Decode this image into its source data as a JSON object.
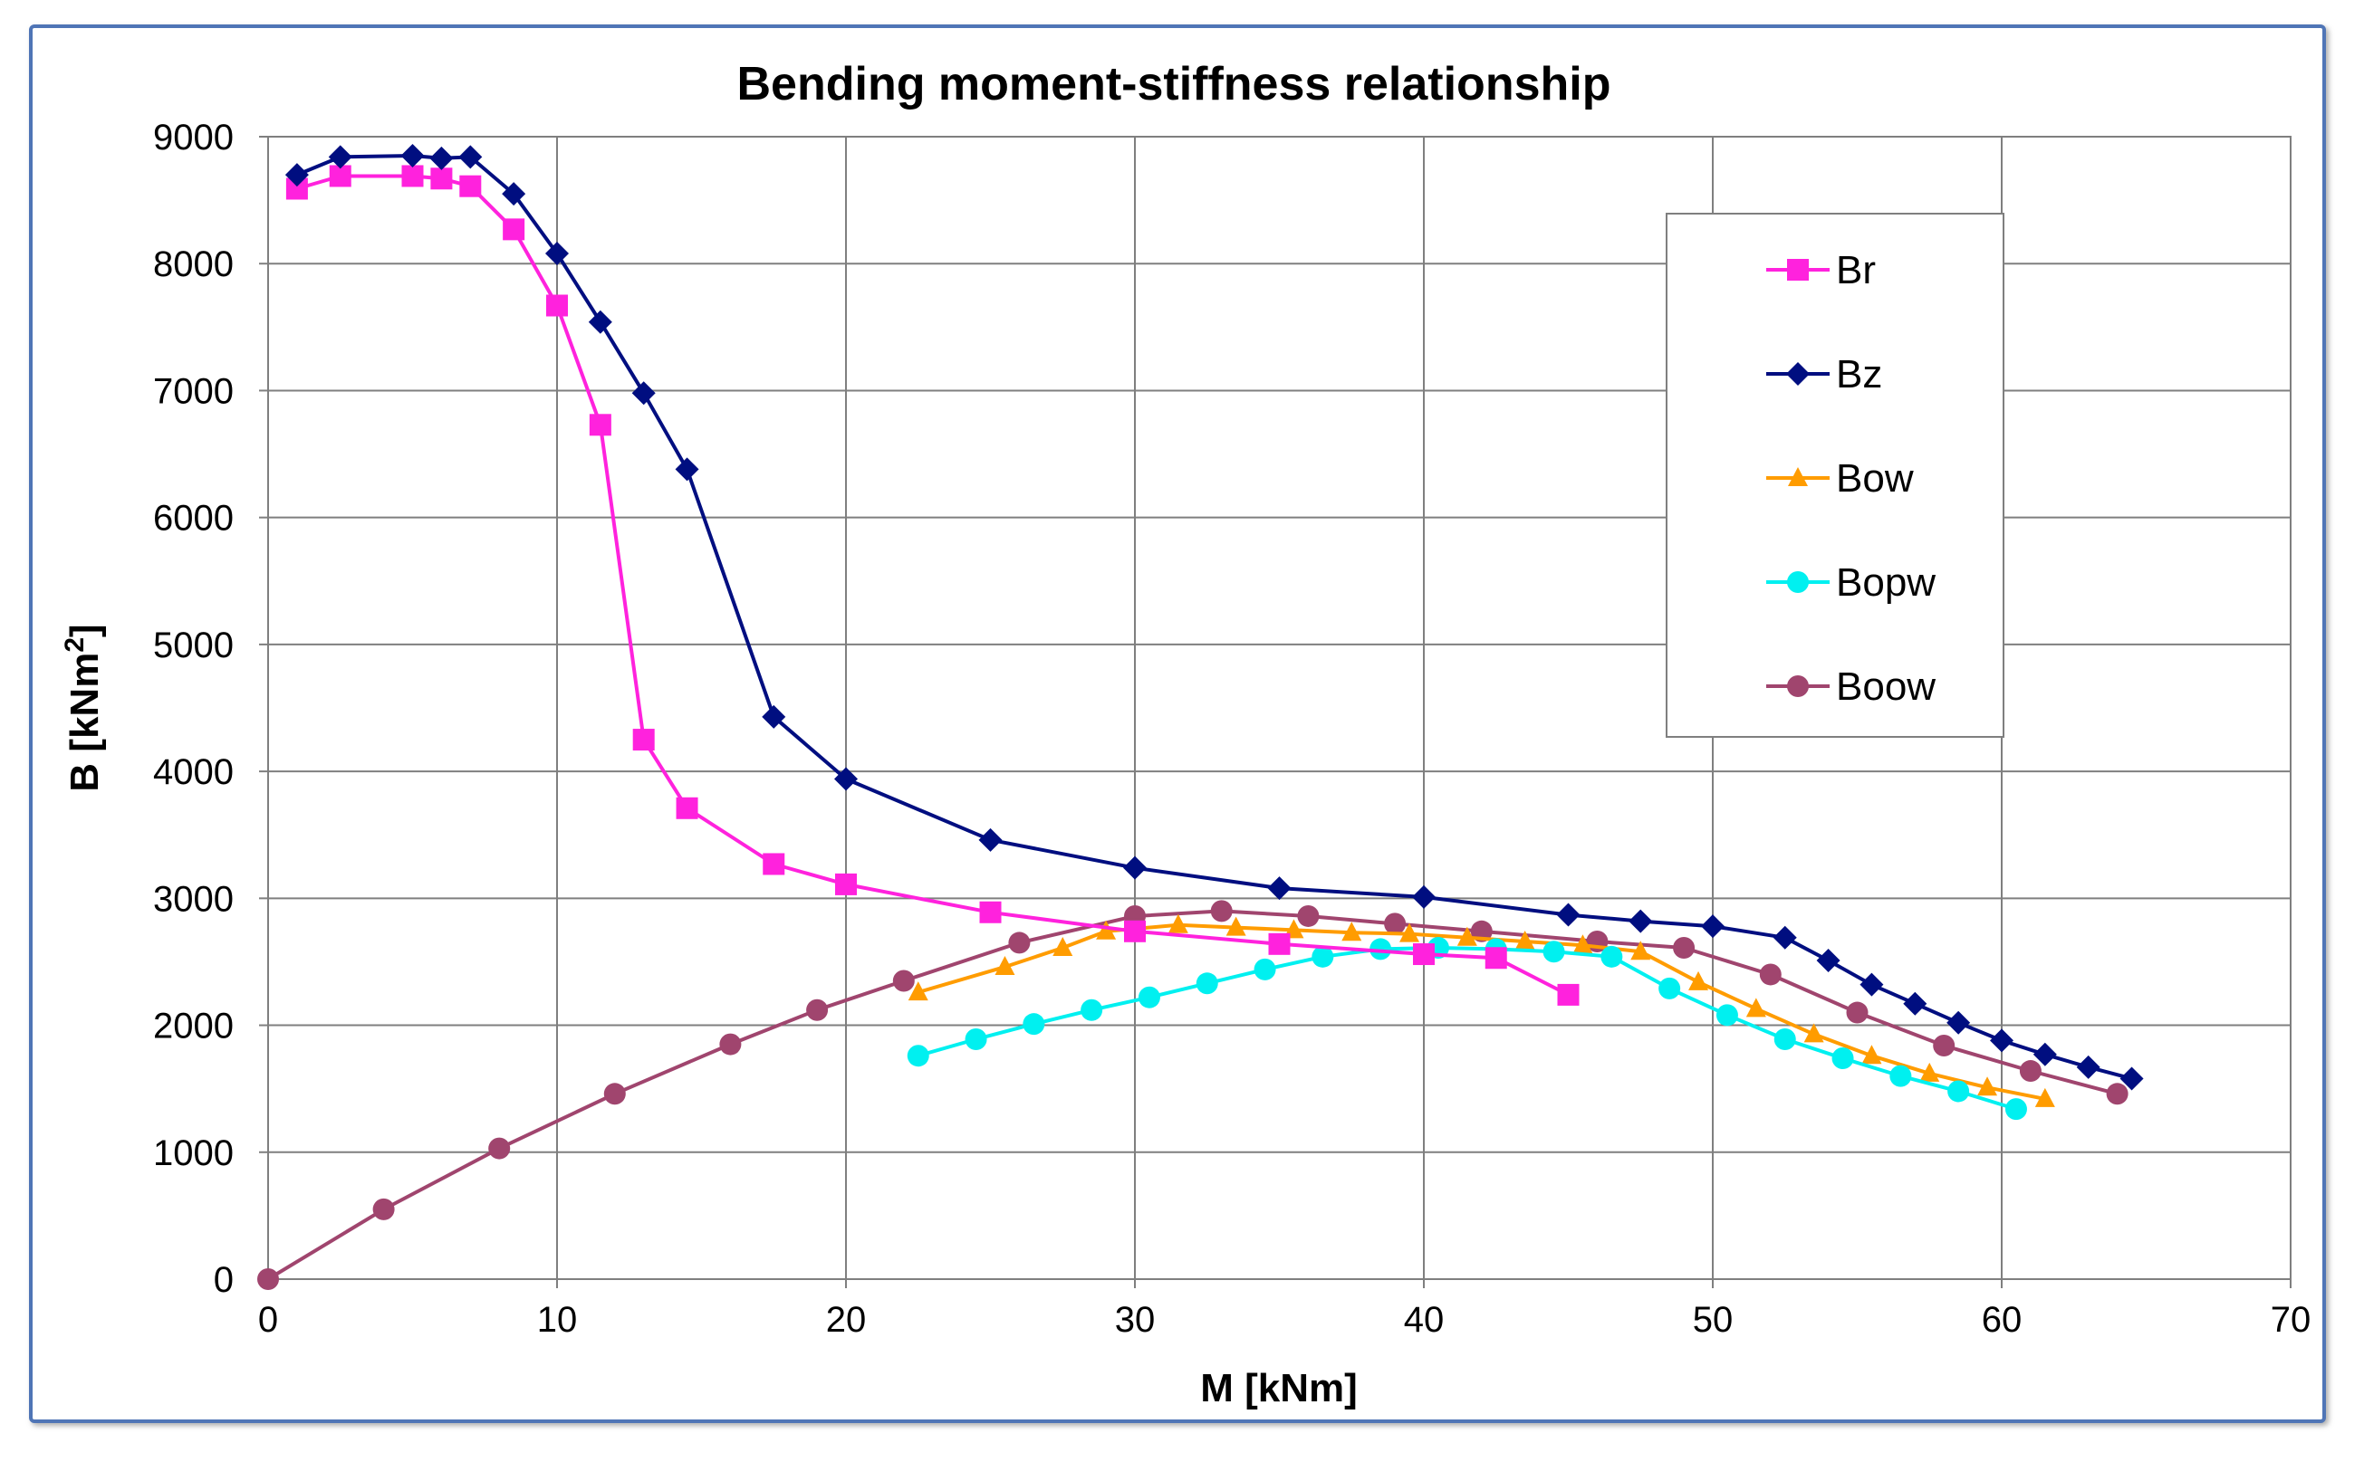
{
  "chart_data": {
    "type": "line",
    "title": "Bending moment-stiffness relationship",
    "xlabel": "M [kNm]",
    "ylabel": "B [kNm²]",
    "xlim": [
      0,
      70
    ],
    "ylim": [
      0,
      9000
    ],
    "x_ticks": [
      0,
      10,
      20,
      30,
      40,
      50,
      60,
      70
    ],
    "y_ticks": [
      0,
      1000,
      2000,
      3000,
      4000,
      5000,
      6000,
      7000,
      8000,
      9000
    ],
    "grid": true,
    "legend_position": "top-right",
    "series": [
      {
        "name": "Br",
        "color": "#ff22dd",
        "marker": "square",
        "x": [
          1,
          2.5,
          5,
          6,
          7,
          8.5,
          10,
          11.5,
          13,
          14.5,
          17.5,
          20,
          25,
          30,
          35,
          40,
          42.5,
          45
        ],
        "y": [
          8590,
          8690,
          8690,
          8670,
          8610,
          8270,
          7670,
          6730,
          4250,
          3710,
          3270,
          3110,
          2890,
          2740,
          2640,
          2560,
          2530,
          2240
        ]
      },
      {
        "name": "Bz",
        "color": "#000e80",
        "marker": "diamond",
        "x": [
          1,
          2.5,
          5,
          6,
          7,
          8.5,
          10,
          11.5,
          13,
          14.5,
          17.5,
          20,
          25,
          30,
          35,
          40,
          45,
          47.5,
          50,
          52.5,
          54,
          55.5,
          57,
          58.5,
          60,
          61.5,
          63,
          64.5
        ],
        "y": [
          8700,
          8840,
          8850,
          8830,
          8840,
          8550,
          8080,
          7540,
          6980,
          6380,
          4430,
          3940,
          3460,
          3240,
          3080,
          3010,
          2870,
          2820,
          2780,
          2690,
          2510,
          2320,
          2170,
          2020,
          1880,
          1770,
          1670,
          1580
        ]
      },
      {
        "name": "Bow",
        "color": "#ff9c00",
        "marker": "triangle",
        "x": [
          22.5,
          25.5,
          27.5,
          29,
          31.5,
          33.5,
          35.5,
          37.5,
          39.5,
          41.5,
          43.5,
          45.5,
          47.5,
          49.5,
          51.5,
          53.5,
          55.5,
          57.5,
          59.5,
          61.5
        ],
        "y": [
          2260,
          2460,
          2610,
          2740,
          2790,
          2770,
          2750,
          2730,
          2720,
          2690,
          2660,
          2630,
          2580,
          2340,
          2130,
          1930,
          1760,
          1620,
          1510,
          1420
        ]
      },
      {
        "name": "Bopw",
        "color": "#00f0f0",
        "marker": "circle",
        "x": [
          22.5,
          24.5,
          26.5,
          28.5,
          30.5,
          32.5,
          34.5,
          36.5,
          38.5,
          40.5,
          42.5,
          44.5,
          46.5,
          48.5,
          50.5,
          52.5,
          54.5,
          56.5,
          58.5,
          60.5
        ],
        "y": [
          1760,
          1890,
          2010,
          2120,
          2220,
          2330,
          2440,
          2540,
          2600,
          2610,
          2600,
          2580,
          2540,
          2290,
          2080,
          1890,
          1740,
          1600,
          1480,
          1340
        ]
      },
      {
        "name": "Boow",
        "color": "#a0456e",
        "marker": "circle",
        "x": [
          0,
          4,
          8,
          12,
          16,
          19,
          22,
          26,
          30,
          33,
          36,
          39,
          42,
          46,
          49,
          52,
          55,
          58,
          61,
          64
        ],
        "y": [
          0,
          550,
          1030,
          1460,
          1850,
          2120,
          2350,
          2650,
          2860,
          2900,
          2860,
          2800,
          2740,
          2660,
          2610,
          2400,
          2100,
          1840,
          1640,
          1460
        ]
      }
    ]
  }
}
